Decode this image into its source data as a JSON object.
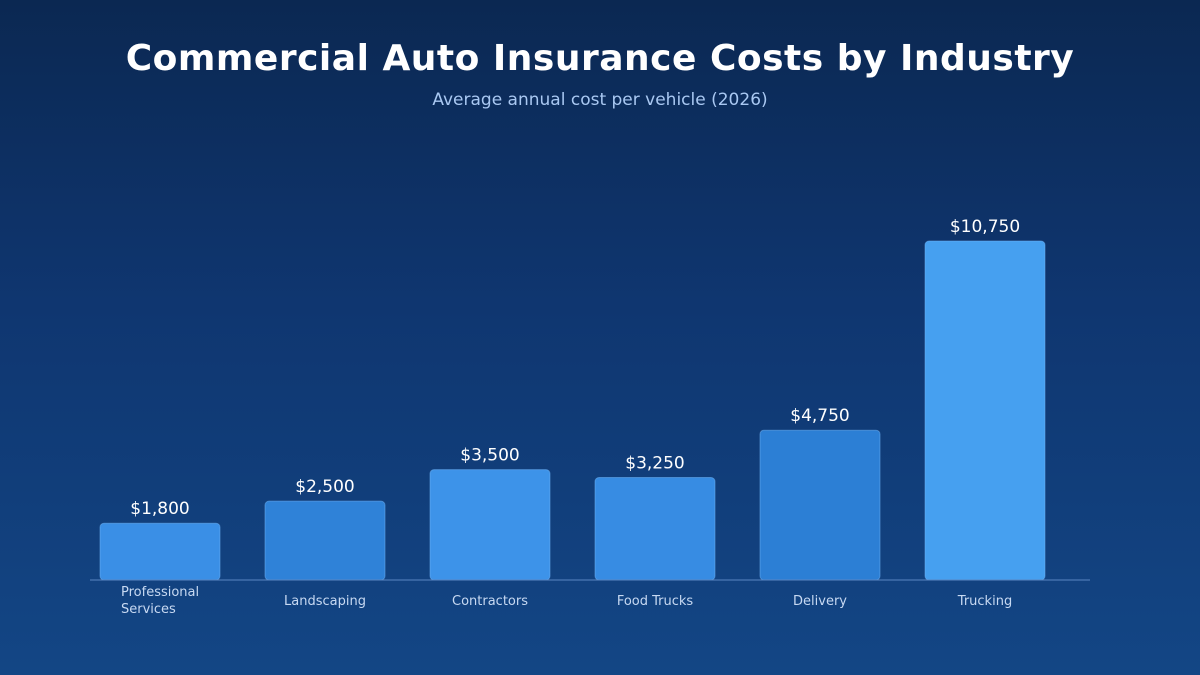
{
  "chart_data": {
    "type": "bar",
    "title": "Commercial Auto Insurance Costs by Industry",
    "subtitle": "Average annual cost per vehicle (2026)",
    "categories": [
      "Professional Services",
      "Landscaping",
      "Contractors",
      "Food Trucks",
      "Delivery",
      "Trucking"
    ],
    "values": [
      1800,
      2500,
      3500,
      3250,
      4750,
      10750
    ],
    "value_labels": [
      "$1,800",
      "$2,500",
      "$3,500",
      "$3,250",
      "$4,750",
      "$10,750"
    ],
    "category_label_lines": [
      [
        "Professional",
        "Services"
      ],
      [
        "Landscaping"
      ],
      [
        "Contractors"
      ],
      [
        "Food Trucks"
      ],
      [
        "Delivery"
      ],
      [
        "Trucking"
      ]
    ],
    "xlabel": "",
    "ylabel": "",
    "ylim": [
      0,
      10750
    ],
    "grid": false,
    "legend": "none",
    "bar_colors": [
      "#3a8fe6",
      "#2f82d8",
      "#3d93e9",
      "#378ce3",
      "#2c7fd5",
      "#46a0f0"
    ],
    "axis_color": "#5b86c2"
  }
}
